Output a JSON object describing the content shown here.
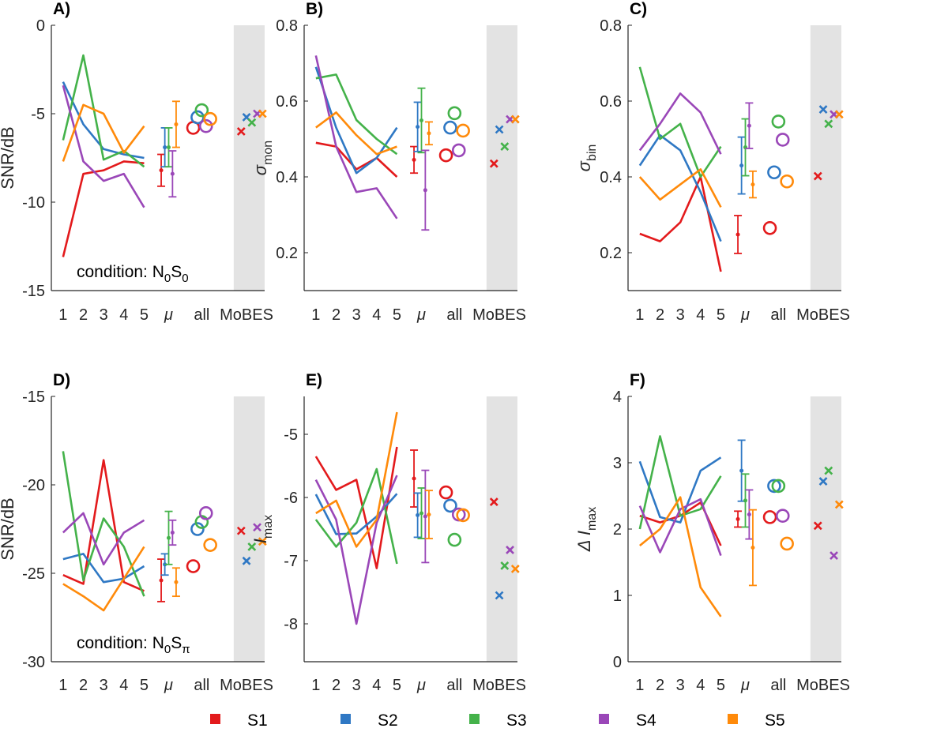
{
  "colors": {
    "S1": "#e31a1c",
    "S2": "#2f78c4",
    "S3": "#44b24a",
    "S4": "#9a47b8",
    "S5": "#ff8a0a"
  },
  "legend": [
    {
      "key": "S1",
      "label": "S1"
    },
    {
      "key": "S2",
      "label": "S2"
    },
    {
      "key": "S3",
      "label": "S3"
    },
    {
      "key": "S4",
      "label": "S4"
    },
    {
      "key": "S5",
      "label": "S5"
    }
  ],
  "chart_data": [
    {
      "panel_label": "A)",
      "type": "line",
      "ylabel": "SNR/dB",
      "ylabel_sub": "",
      "ylabel_italic": false,
      "ylim": [
        -15,
        0
      ],
      "yticks": [
        0,
        -5,
        -10,
        -15
      ],
      "xticks": [
        "1",
        "2",
        "3",
        "4",
        "5",
        "μ",
        "all",
        "MoBES"
      ],
      "condition": {
        "prefix": "condition: N",
        "sub1": "0",
        "mid": "S",
        "sub2": "0"
      },
      "series": [
        {
          "name": "S1",
          "values": [
            -13.1,
            -8.4,
            -8.2,
            -7.7,
            -7.8
          ],
          "mean": -8.2,
          "err": 0.9,
          "all": -5.8,
          "mobes": -6.0
        },
        {
          "name": "S2",
          "values": [
            -3.2,
            -5.6,
            -7.0,
            -7.3,
            -7.5
          ],
          "mean": -6.9,
          "err": 1.1,
          "all": -5.2,
          "mobes": -5.2
        },
        {
          "name": "S3",
          "values": [
            -6.5,
            -1.7,
            -7.6,
            -7.1,
            -8.0
          ],
          "mean": -6.9,
          "err": 1.1,
          "all": -4.8,
          "mobes": -5.5
        },
        {
          "name": "S4",
          "values": [
            -3.4,
            -7.7,
            -8.8,
            -8.4,
            -10.3
          ],
          "mean": -8.4,
          "err": 1.3,
          "all": -5.7,
          "mobes": -5.0
        },
        {
          "name": "S5",
          "values": [
            -7.7,
            -4.5,
            -5.0,
            -7.2,
            -5.7
          ],
          "mean": -5.6,
          "err": 1.3,
          "all": -5.3,
          "mobes": -5.0
        }
      ]
    },
    {
      "panel_label": "B)",
      "type": "line",
      "ylabel": "σ",
      "ylabel_sub": "mon",
      "ylabel_italic": true,
      "ylim": [
        0.1,
        0.8
      ],
      "yticks": [
        0.8,
        0.6,
        0.4,
        0.2
      ],
      "xticks": [
        "1",
        "2",
        "3",
        "4",
        "5",
        "μ",
        "all",
        "MoBES"
      ],
      "condition": null,
      "series": [
        {
          "name": "S1",
          "values": [
            0.49,
            0.48,
            0.42,
            0.45,
            0.4
          ],
          "mean": 0.445,
          "err": 0.035,
          "all": 0.457,
          "mobes": 0.435
        },
        {
          "name": "S2",
          "values": [
            0.69,
            0.53,
            0.41,
            0.45,
            0.53
          ],
          "mean": 0.532,
          "err": 0.065,
          "all": 0.53,
          "mobes": 0.525
        },
        {
          "name": "S3",
          "values": [
            0.66,
            0.67,
            0.55,
            0.5,
            0.46
          ],
          "mean": 0.549,
          "err": 0.085,
          "all": 0.568,
          "mobes": 0.48
        },
        {
          "name": "S4",
          "values": [
            0.72,
            0.48,
            0.36,
            0.37,
            0.29
          ],
          "mean": 0.365,
          "err": 0.105,
          "all": 0.47,
          "mobes": 0.552
        },
        {
          "name": "S5",
          "values": [
            0.53,
            0.57,
            0.51,
            0.46,
            0.48
          ],
          "mean": 0.515,
          "err": 0.03,
          "all": 0.522,
          "mobes": 0.552
        }
      ]
    },
    {
      "panel_label": "C)",
      "type": "line",
      "ylabel": "σ",
      "ylabel_sub": "bin",
      "ylabel_italic": true,
      "ylim": [
        0.1,
        0.8
      ],
      "yticks": [
        0.8,
        0.6,
        0.4,
        0.2
      ],
      "xticks": [
        "1",
        "2",
        "3",
        "4",
        "5",
        "μ",
        "all",
        "MoBES"
      ],
      "condition": null,
      "series": [
        {
          "name": "S1",
          "values": [
            0.25,
            0.23,
            0.28,
            0.4,
            0.15
          ],
          "mean": 0.248,
          "err": 0.05,
          "all": 0.265,
          "mobes": 0.402
        },
        {
          "name": "S2",
          "values": [
            0.43,
            0.51,
            0.47,
            0.36,
            0.23
          ],
          "mean": 0.43,
          "err": 0.075,
          "all": 0.412,
          "mobes": 0.578
        },
        {
          "name": "S3",
          "values": [
            0.69,
            0.5,
            0.54,
            0.4,
            0.48
          ],
          "mean": 0.478,
          "err": 0.075,
          "all": 0.546,
          "mobes": 0.54
        },
        {
          "name": "S4",
          "values": [
            0.47,
            0.54,
            0.62,
            0.57,
            0.46
          ],
          "mean": 0.535,
          "err": 0.06,
          "all": 0.498,
          "mobes": 0.565
        },
        {
          "name": "S5",
          "values": [
            0.4,
            0.34,
            0.38,
            0.42,
            0.32
          ],
          "mean": 0.38,
          "err": 0.035,
          "all": 0.388,
          "mobes": 0.565
        }
      ]
    },
    {
      "panel_label": "D)",
      "type": "line",
      "ylabel": "SNR/dB",
      "ylabel_sub": "",
      "ylabel_italic": false,
      "ylim": [
        -30,
        -15
      ],
      "yticks": [
        -15,
        -20,
        -25,
        -30
      ],
      "xticks": [
        "1",
        "2",
        "3",
        "4",
        "5",
        "μ",
        "all",
        "MoBES"
      ],
      "condition": {
        "prefix": "condition: N",
        "sub1": "0",
        "mid": "S",
        "sub2": "π"
      },
      "series": [
        {
          "name": "S1",
          "values": [
            -25.1,
            -25.6,
            -18.6,
            -25.5,
            -26.0
          ],
          "mean": -25.4,
          "err": 1.2,
          "all": -24.6,
          "mobes": -22.6
        },
        {
          "name": "S2",
          "values": [
            -24.2,
            -23.9,
            -25.5,
            -25.3,
            -24.6
          ],
          "mean": -24.5,
          "err": 0.6,
          "all": -22.5,
          "mobes": -24.3
        },
        {
          "name": "S3",
          "values": [
            -18.1,
            -25.4,
            -21.9,
            -23.5,
            -26.3
          ],
          "mean": -23.0,
          "err": 1.5,
          "all": -22.1,
          "mobes": -23.5
        },
        {
          "name": "S4",
          "values": [
            -22.7,
            -21.6,
            -24.5,
            -22.7,
            -22.0
          ],
          "mean": -22.7,
          "err": 0.7,
          "all": -21.6,
          "mobes": -22.4
        },
        {
          "name": "S5",
          "values": [
            -25.6,
            -26.3,
            -27.1,
            -25.3,
            -23.5
          ],
          "mean": -25.5,
          "err": 0.8,
          "all": -23.4,
          "mobes": -23.2
        }
      ]
    },
    {
      "panel_label": "E)",
      "type": "line",
      "ylabel": "I",
      "ylabel_sub": "max",
      "ylabel_italic": true,
      "ylim": [
        -8.6,
        -4.4
      ],
      "yticks": [
        -5,
        -6,
        -7,
        -8
      ],
      "xticks": [
        "1",
        "2",
        "3",
        "4",
        "5",
        "μ",
        "all",
        "MoBES"
      ],
      "condition": null,
      "series": [
        {
          "name": "S1",
          "values": [
            -5.35,
            -5.88,
            -5.72,
            -7.12,
            -5.2
          ],
          "mean": -5.7,
          "err": 0.45,
          "all": -5.92,
          "mobes": -6.07
        },
        {
          "name": "S2",
          "values": [
            -5.95,
            -6.58,
            -6.57,
            -6.3,
            -5.94
          ],
          "mean": -6.28,
          "err": 0.35,
          "all": -6.13,
          "mobes": -7.55
        },
        {
          "name": "S3",
          "values": [
            -6.35,
            -6.78,
            -6.4,
            -5.55,
            -7.05
          ],
          "mean": -6.25,
          "err": 0.4,
          "all": -6.67,
          "mobes": -7.08
        },
        {
          "name": "S4",
          "values": [
            -5.72,
            -6.35,
            -8.0,
            -6.4,
            -5.65
          ],
          "mean": -6.3,
          "err": 0.73,
          "all": -6.27,
          "mobes": -6.83
        },
        {
          "name": "S5",
          "values": [
            -6.25,
            -6.05,
            -6.78,
            -6.35,
            -4.65
          ],
          "mean": -6.27,
          "err": 0.38,
          "all": -6.28,
          "mobes": -7.13
        }
      ]
    },
    {
      "panel_label": "F)",
      "type": "line",
      "ylabel": "Δ I",
      "ylabel_sub": "max",
      "ylabel_italic": true,
      "ylim": [
        0,
        4
      ],
      "yticks": [
        4,
        3,
        2,
        1,
        0
      ],
      "xticks": [
        "1",
        "2",
        "3",
        "4",
        "5",
        "μ",
        "all",
        "MoBES"
      ],
      "condition": null,
      "series": [
        {
          "name": "S1",
          "values": [
            2.2,
            2.1,
            2.2,
            2.4,
            1.75
          ],
          "mean": 2.15,
          "err": 0.12,
          "all": 2.18,
          "mobes": 2.05
        },
        {
          "name": "S2",
          "values": [
            3.02,
            2.18,
            2.1,
            2.88,
            3.08
          ],
          "mean": 2.88,
          "err": 0.46,
          "all": 2.65,
          "mobes": 2.72
        },
        {
          "name": "S3",
          "values": [
            2.0,
            3.4,
            2.2,
            2.3,
            2.8
          ],
          "mean": 2.43,
          "err": 0.4,
          "all": 2.65,
          "mobes": 2.88
        },
        {
          "name": "S4",
          "values": [
            2.35,
            1.65,
            2.3,
            2.45,
            1.6
          ],
          "mean": 2.22,
          "err": 0.37,
          "all": 2.2,
          "mobes": 1.6
        },
        {
          "name": "S5",
          "values": [
            1.75,
            2.0,
            2.48,
            1.12,
            0.68
          ],
          "mean": 1.72,
          "err": 0.57,
          "all": 1.78,
          "mobes": 2.37
        }
      ]
    }
  ]
}
